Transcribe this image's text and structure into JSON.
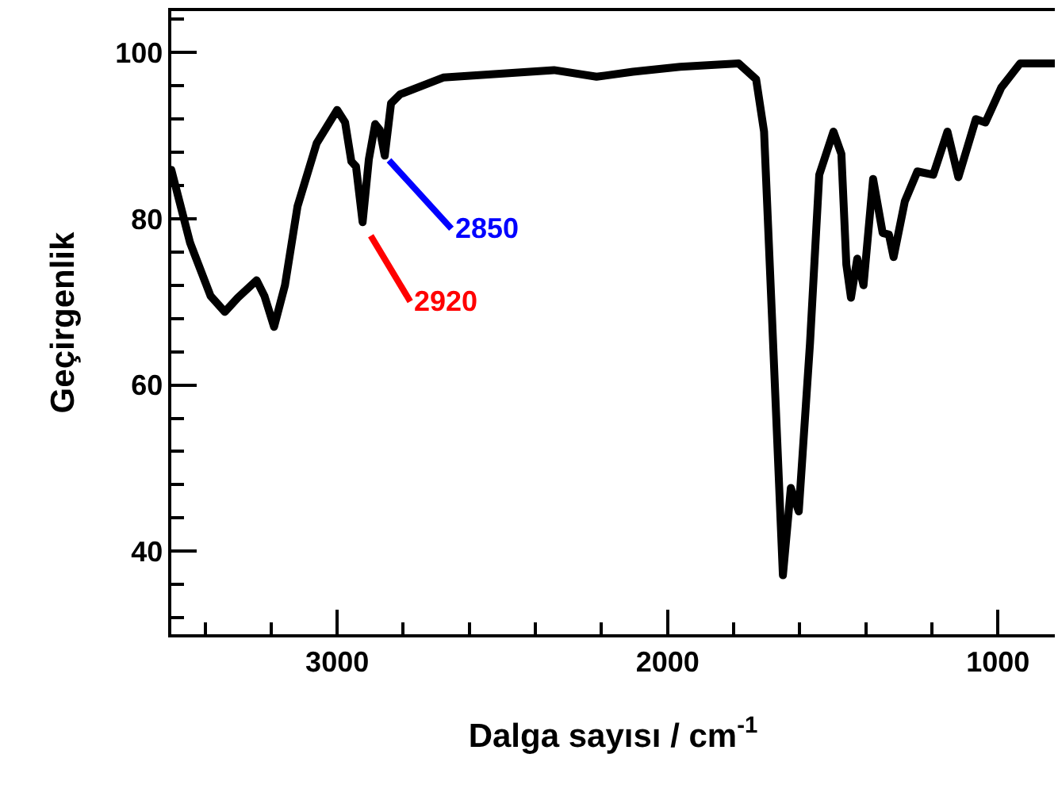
{
  "chart_data": {
    "type": "line",
    "xlabel": "Dalga sayısı / cm$^{-1}$",
    "ylabel": "Geçirgenlik",
    "x": [
      3502,
      3445,
      3383,
      3340,
      3301,
      3244,
      3220,
      3191,
      3158,
      3120,
      3062,
      3000,
      2976,
      2957,
      2943,
      2923,
      2904,
      2885,
      2871,
      2856,
      2837,
      2809,
      2679,
      2344,
      2215,
      2105,
      1962,
      1785,
      1732,
      1708,
      1684,
      1651,
      1627,
      1603,
      1569,
      1541,
      1498,
      1474,
      1459,
      1445,
      1426,
      1407,
      1378,
      1349,
      1330,
      1316,
      1282,
      1244,
      1196,
      1153,
      1120,
      1067,
      1038,
      990,
      933,
      828
    ],
    "series": [
      {
        "color": "#000000",
        "values": [
          85.9,
          77.1,
          70.7,
          68.8,
          70.5,
          72.6,
          70.7,
          67.0,
          72.0,
          81.5,
          89.1,
          93.1,
          91.6,
          86.9,
          86.3,
          79.6,
          87.2,
          91.4,
          90.7,
          87.6,
          93.9,
          95.0,
          97.0,
          97.9,
          97.1,
          97.7,
          98.3,
          98.7,
          96.8,
          90.5,
          68.2,
          37.1,
          47.6,
          44.8,
          65.0,
          85.3,
          90.5,
          87.8,
          74.5,
          70.5,
          75.2,
          72.0,
          84.8,
          78.3,
          78.1,
          75.4,
          82.1,
          85.7,
          85.3,
          90.5,
          85.0,
          92.0,
          91.6,
          95.8,
          98.7,
          98.7
        ]
      }
    ],
    "annotations": [
      {
        "text": "2920",
        "x": 2923,
        "y": 79.6
      },
      {
        "text": "2850",
        "x": 2856,
        "y": 87.6
      }
    ],
    "xlim": [
      3502,
      828
    ],
    "ylim": [
      30,
      105
    ],
    "xticks": [
      3000,
      2000,
      1000,
      {
        "value": 3400,
        "label": null
      },
      {
        "value": 3200,
        "label": null
      },
      {
        "value": 2800,
        "label": null
      },
      {
        "value": 2600,
        "label": null
      },
      {
        "value": 2400,
        "label": null
      },
      {
        "value": 2200,
        "label": null
      },
      {
        "value": 1800,
        "label": null
      },
      {
        "value": 1600,
        "label": null
      },
      {
        "value": 1400,
        "label": null
      },
      {
        "value": 1200,
        "label": null
      }
    ],
    "yticks": [
      40,
      60,
      80,
      100,
      {
        "value": 32,
        "label": null
      },
      {
        "value": 36,
        "label": null
      },
      {
        "value": 44,
        "label": null
      },
      {
        "value": 48,
        "label": null
      },
      {
        "value": 52,
        "label": null
      },
      {
        "value": 56,
        "label": null
      },
      {
        "value": 64,
        "label": null
      },
      {
        "value": 68,
        "label": null
      },
      {
        "value": 72,
        "label": null
      },
      {
        "value": 76,
        "label": null
      },
      {
        "value": 84,
        "label": null
      },
      {
        "value": 88,
        "label": null
      },
      {
        "value": 92,
        "label": null
      },
      {
        "value": 96,
        "label": null
      },
      {
        "value": 104,
        "label": null
      }
    ],
    "marker": "none",
    "line_style": "solid"
  }
}
